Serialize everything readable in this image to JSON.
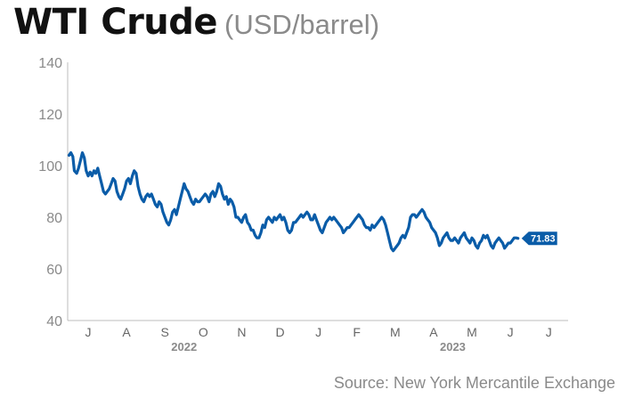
{
  "header": {
    "title": "WTI Crude",
    "unit": "(USD/barrel)"
  },
  "source": "Source: New York Mercantile Exchange",
  "chart_data": {
    "type": "line",
    "ylim": [
      40,
      140
    ],
    "yticks": [
      40,
      60,
      80,
      100,
      120,
      140
    ],
    "x_month_labels": [
      "J",
      "A",
      "S",
      "O",
      "N",
      "D",
      "J",
      "F",
      "M",
      "A",
      "M",
      "J",
      "J"
    ],
    "year_labels": [
      {
        "label": "2022",
        "month_index": 2.5
      },
      {
        "label": "2023",
        "month_index": 9.5
      }
    ],
    "last_value_label": "71.83",
    "line_color": "#0a5ca8",
    "x_range_months": [
      -0.5,
      12.05
    ],
    "series": [
      {
        "values": [
          [
            -0.5,
            104
          ],
          [
            -0.45,
            105
          ],
          [
            -0.4,
            103.5
          ],
          [
            -0.36,
            98
          ],
          [
            -0.3,
            97
          ],
          [
            -0.25,
            99
          ],
          [
            -0.2,
            102
          ],
          [
            -0.15,
            105
          ],
          [
            -0.1,
            103
          ],
          [
            -0.05,
            98
          ],
          [
            0.0,
            96
          ],
          [
            0.05,
            97.5
          ],
          [
            0.1,
            96
          ],
          [
            0.15,
            98
          ],
          [
            0.2,
            97
          ],
          [
            0.25,
            99
          ],
          [
            0.3,
            96
          ],
          [
            0.35,
            93
          ],
          [
            0.4,
            90
          ],
          [
            0.45,
            89
          ],
          [
            0.5,
            90
          ],
          [
            0.55,
            91
          ],
          [
            0.6,
            93
          ],
          [
            0.65,
            95
          ],
          [
            0.7,
            94
          ],
          [
            0.75,
            90
          ],
          [
            0.8,
            88
          ],
          [
            0.85,
            87
          ],
          [
            0.9,
            89
          ],
          [
            0.95,
            91
          ],
          [
            1.0,
            94
          ],
          [
            1.05,
            95
          ],
          [
            1.1,
            93
          ],
          [
            1.15,
            96
          ],
          [
            1.2,
            98
          ],
          [
            1.25,
            97
          ],
          [
            1.3,
            92
          ],
          [
            1.35,
            89
          ],
          [
            1.4,
            87
          ],
          [
            1.45,
            86
          ],
          [
            1.5,
            88
          ],
          [
            1.55,
            89
          ],
          [
            1.6,
            88
          ],
          [
            1.65,
            89
          ],
          [
            1.7,
            87
          ],
          [
            1.75,
            85
          ],
          [
            1.8,
            84
          ],
          [
            1.85,
            86
          ],
          [
            1.9,
            85
          ],
          [
            1.95,
            82
          ],
          [
            2.0,
            80
          ],
          [
            2.05,
            78
          ],
          [
            2.1,
            77
          ],
          [
            2.15,
            79
          ],
          [
            2.2,
            82
          ],
          [
            2.25,
            83
          ],
          [
            2.3,
            81
          ],
          [
            2.35,
            84
          ],
          [
            2.4,
            87
          ],
          [
            2.45,
            90
          ],
          [
            2.5,
            93
          ],
          [
            2.55,
            91
          ],
          [
            2.6,
            90
          ],
          [
            2.65,
            88
          ],
          [
            2.7,
            86
          ],
          [
            2.75,
            85
          ],
          [
            2.8,
            87
          ],
          [
            2.85,
            86
          ],
          [
            2.9,
            86
          ],
          [
            2.95,
            87
          ],
          [
            3.0,
            88
          ],
          [
            3.05,
            89
          ],
          [
            3.1,
            88
          ],
          [
            3.15,
            86
          ],
          [
            3.2,
            89
          ],
          [
            3.25,
            90
          ],
          [
            3.3,
            88
          ],
          [
            3.35,
            90
          ],
          [
            3.4,
            93
          ],
          [
            3.45,
            92
          ],
          [
            3.5,
            89
          ],
          [
            3.55,
            87
          ],
          [
            3.6,
            88
          ],
          [
            3.65,
            85
          ],
          [
            3.7,
            87
          ],
          [
            3.75,
            86
          ],
          [
            3.8,
            84
          ],
          [
            3.85,
            80
          ],
          [
            3.9,
            80
          ],
          [
            3.95,
            79
          ],
          [
            4.0,
            78
          ],
          [
            4.05,
            80
          ],
          [
            4.1,
            81
          ],
          [
            4.15,
            78
          ],
          [
            4.2,
            77
          ],
          [
            4.25,
            75
          ],
          [
            4.3,
            75
          ],
          [
            4.35,
            73
          ],
          [
            4.4,
            72
          ],
          [
            4.45,
            72
          ],
          [
            4.5,
            74
          ],
          [
            4.55,
            77
          ],
          [
            4.6,
            76
          ],
          [
            4.65,
            79
          ],
          [
            4.7,
            80
          ],
          [
            4.75,
            79
          ],
          [
            4.8,
            78
          ],
          [
            4.85,
            80
          ],
          [
            4.9,
            79
          ],
          [
            4.95,
            80
          ],
          [
            5.0,
            81
          ],
          [
            5.05,
            79
          ],
          [
            5.1,
            80
          ],
          [
            5.15,
            78
          ],
          [
            5.2,
            75
          ],
          [
            5.25,
            74
          ],
          [
            5.3,
            75
          ],
          [
            5.35,
            78
          ],
          [
            5.4,
            78
          ],
          [
            5.45,
            79
          ],
          [
            5.5,
            80
          ],
          [
            5.55,
            81
          ],
          [
            5.6,
            80
          ],
          [
            5.65,
            81
          ],
          [
            5.7,
            82
          ],
          [
            5.75,
            81
          ],
          [
            5.8,
            79
          ],
          [
            5.85,
            79
          ],
          [
            5.9,
            81
          ],
          [
            5.95,
            79
          ],
          [
            6.0,
            77
          ],
          [
            6.05,
            75
          ],
          [
            6.1,
            74
          ],
          [
            6.15,
            76
          ],
          [
            6.2,
            78
          ],
          [
            6.25,
            79
          ],
          [
            6.3,
            80
          ],
          [
            6.35,
            79
          ],
          [
            6.4,
            80
          ],
          [
            6.45,
            79
          ],
          [
            6.5,
            78
          ],
          [
            6.55,
            77
          ],
          [
            6.6,
            76
          ],
          [
            6.65,
            74
          ],
          [
            6.7,
            75
          ],
          [
            6.75,
            76
          ],
          [
            6.8,
            76
          ],
          [
            6.85,
            77
          ],
          [
            6.9,
            78
          ],
          [
            6.95,
            79
          ],
          [
            7.0,
            80
          ],
          [
            7.05,
            81
          ],
          [
            7.1,
            80
          ],
          [
            7.15,
            79
          ],
          [
            7.2,
            77
          ],
          [
            7.25,
            76
          ],
          [
            7.3,
            76
          ],
          [
            7.35,
            75
          ],
          [
            7.4,
            77
          ],
          [
            7.45,
            76
          ],
          [
            7.5,
            77
          ],
          [
            7.55,
            78
          ],
          [
            7.6,
            79
          ],
          [
            7.65,
            80
          ],
          [
            7.7,
            79
          ],
          [
            7.75,
            77
          ],
          [
            7.8,
            74
          ],
          [
            7.85,
            71
          ],
          [
            7.9,
            68
          ],
          [
            7.95,
            67
          ],
          [
            8.0,
            68
          ],
          [
            8.05,
            69
          ],
          [
            8.1,
            70
          ],
          [
            8.15,
            72
          ],
          [
            8.2,
            73
          ],
          [
            8.25,
            72
          ],
          [
            8.3,
            74
          ],
          [
            8.35,
            76
          ],
          [
            8.4,
            80
          ],
          [
            8.45,
            81
          ],
          [
            8.5,
            81
          ],
          [
            8.55,
            80
          ],
          [
            8.6,
            81
          ],
          [
            8.65,
            82
          ],
          [
            8.7,
            83
          ],
          [
            8.75,
            82
          ],
          [
            8.8,
            80
          ],
          [
            8.85,
            79
          ],
          [
            8.9,
            78
          ],
          [
            8.95,
            76
          ],
          [
            9.0,
            75
          ],
          [
            9.05,
            74
          ],
          [
            9.1,
            72
          ],
          [
            9.15,
            69
          ],
          [
            9.2,
            70
          ],
          [
            9.25,
            72
          ],
          [
            9.3,
            73
          ],
          [
            9.35,
            74
          ],
          [
            9.4,
            72
          ],
          [
            9.45,
            71
          ],
          [
            9.5,
            71
          ],
          [
            9.55,
            72
          ],
          [
            9.6,
            71
          ],
          [
            9.65,
            70
          ],
          [
            9.7,
            72
          ],
          [
            9.75,
            73
          ],
          [
            9.8,
            74
          ],
          [
            9.85,
            72
          ],
          [
            9.9,
            71
          ],
          [
            9.95,
            70
          ],
          [
            10.0,
            72
          ],
          [
            10.05,
            71
          ],
          [
            10.1,
            69
          ],
          [
            10.15,
            68
          ],
          [
            10.2,
            70
          ],
          [
            10.25,
            71
          ],
          [
            10.3,
            73
          ],
          [
            10.35,
            72
          ],
          [
            10.4,
            73
          ],
          [
            10.45,
            71
          ],
          [
            10.5,
            69
          ],
          [
            10.55,
            68
          ],
          [
            10.6,
            70
          ],
          [
            10.65,
            71
          ],
          [
            10.7,
            72
          ],
          [
            10.75,
            71
          ],
          [
            10.8,
            70
          ],
          [
            10.85,
            68
          ],
          [
            10.9,
            69
          ],
          [
            10.95,
            70
          ],
          [
            11.0,
            70
          ],
          [
            11.05,
            71
          ],
          [
            11.1,
            72
          ],
          [
            11.15,
            72
          ],
          [
            11.2,
            71.83
          ]
        ]
      }
    ]
  }
}
